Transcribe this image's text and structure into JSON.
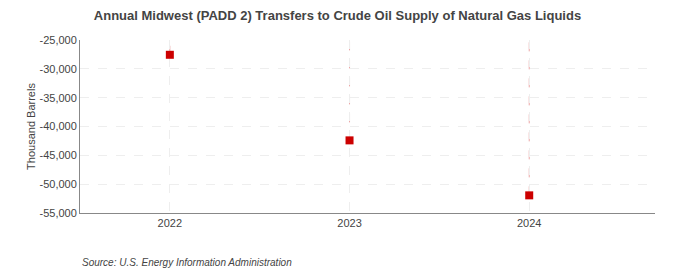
{
  "chart_data": {
    "type": "scatter",
    "title": "Annual Midwest (PADD 2) Transfers to Crude Oil Supply of Natural Gas Liquids",
    "ylabel": "Thousand Barrels",
    "annotations": [
      "Source: U.S. Energy Information Administration"
    ],
    "x": [
      2022,
      2023,
      2024
    ],
    "values": [
      -27564,
      -42406,
      -51940
    ],
    "color": "#cc0000",
    "marker": "square",
    "xlim": [
      2021.5,
      2024.7
    ],
    "xticks": [
      2022,
      2023,
      2024
    ],
    "ylim": [
      -55000,
      -25000
    ],
    "yticks": [
      {
        "value": -25000,
        "label": "-25,000"
      },
      {
        "value": -30000,
        "label": "-30,000"
      },
      {
        "value": -35000,
        "label": "-35,000"
      },
      {
        "value": -40000,
        "label": "-40,000"
      },
      {
        "value": -45000,
        "label": "-45,000"
      },
      {
        "value": -50000,
        "label": "-50,000"
      },
      {
        "value": -55000,
        "label": "-55,000"
      }
    ],
    "grid": true
  }
}
